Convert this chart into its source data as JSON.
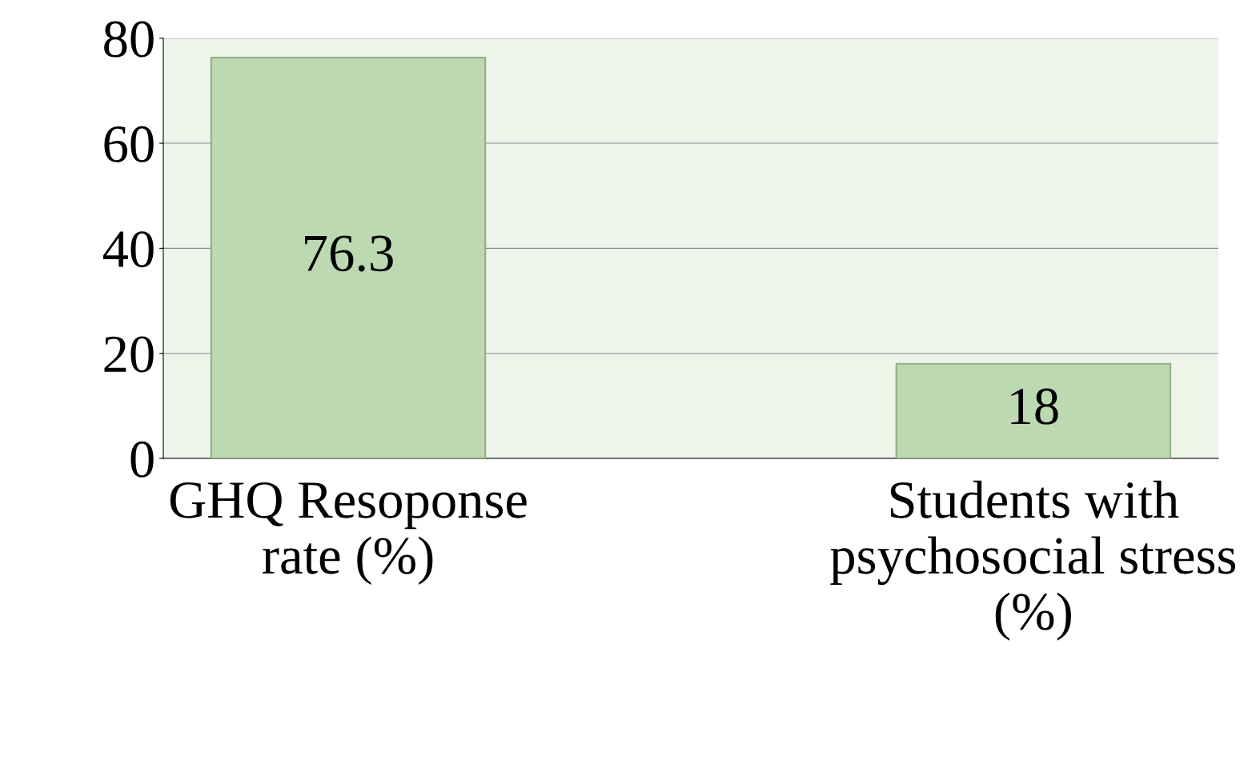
{
  "chart_data": {
    "type": "bar",
    "categories": [
      "GHQ Resoponse\nrate (%)",
      "Students with\npsychosocial stress\n(%)"
    ],
    "values": [
      76.3,
      18
    ],
    "color": "#bcd9b1",
    "ylim": [
      0,
      80
    ],
    "yticks": [
      0,
      20,
      40,
      60,
      80
    ],
    "grid": "y",
    "data_labels": true
  }
}
